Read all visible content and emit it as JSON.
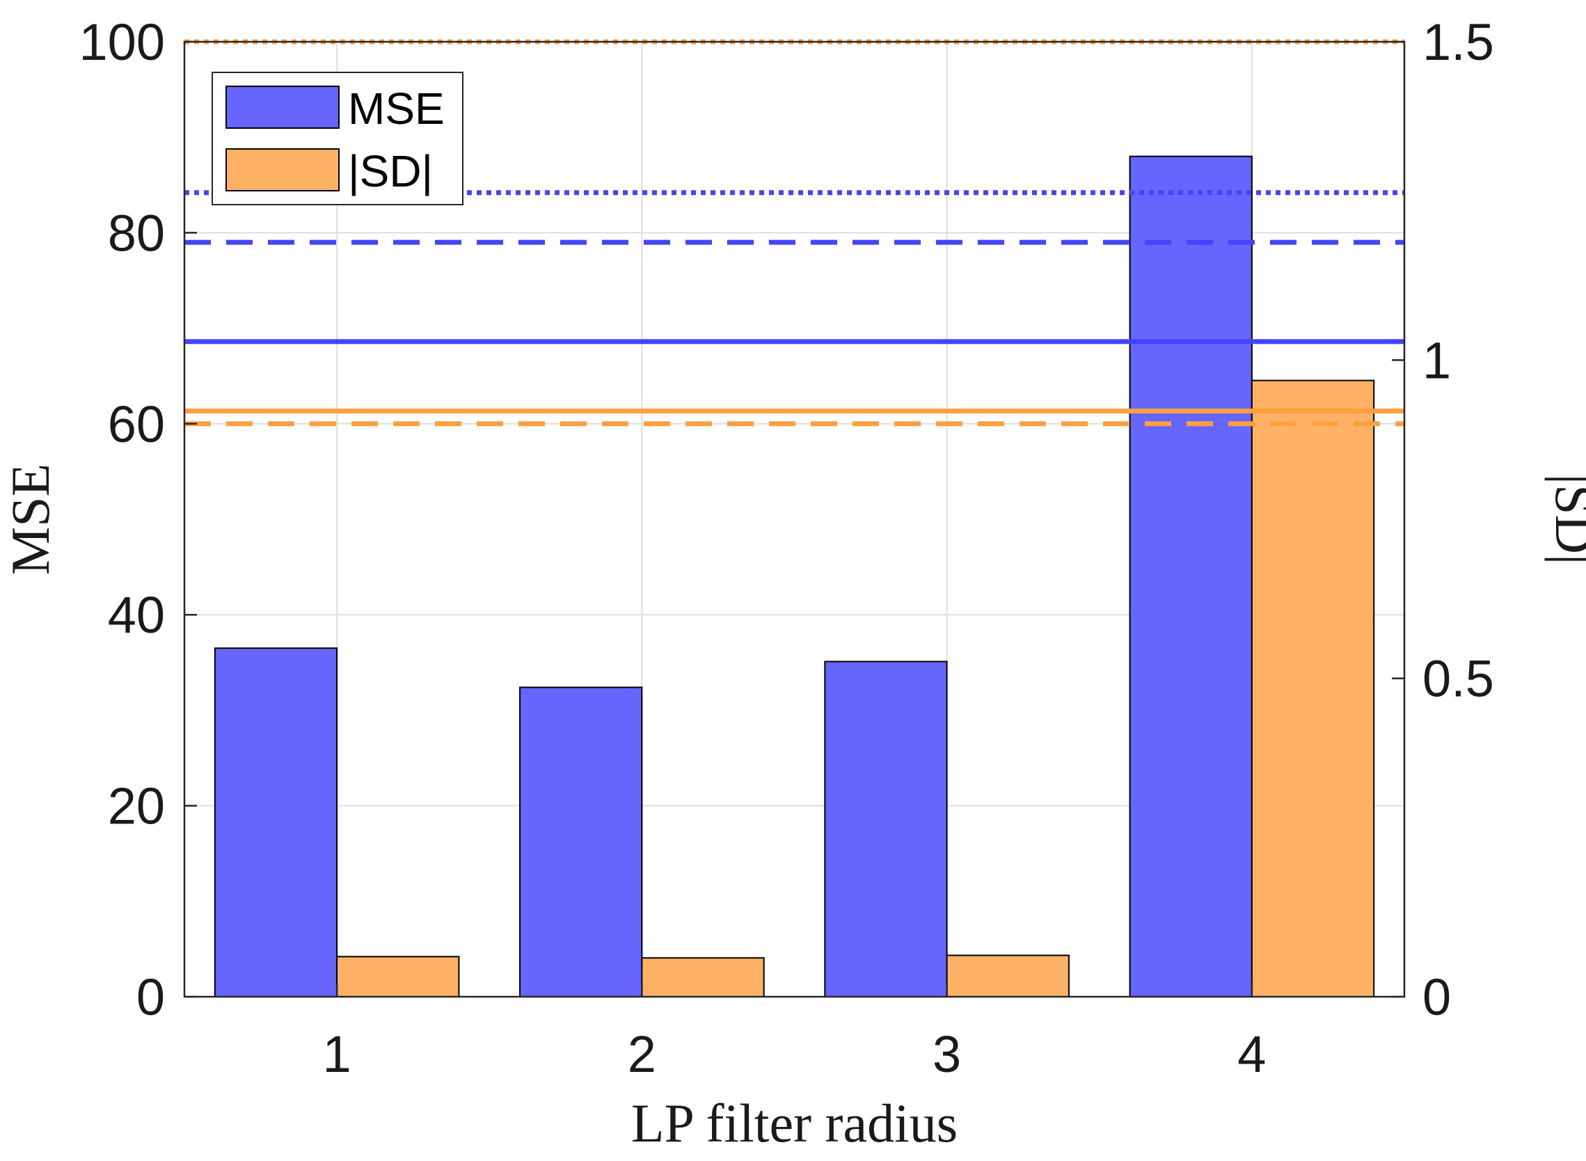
{
  "chart_data": {
    "type": "bar",
    "categories": [
      "1",
      "2",
      "3",
      "4"
    ],
    "xlabel": "LP filter radius",
    "ylabel_left": "MSE",
    "ylabel_right": "|SD|",
    "ylim_left": [
      0,
      100
    ],
    "ylim_right": [
      0,
      1.5
    ],
    "yticks_left": [
      "0",
      "20",
      "40",
      "60",
      "80",
      "100"
    ],
    "yticks_right": [
      "0",
      "0.5",
      "1",
      "1.5"
    ],
    "grid": true,
    "legend_position": "top-left",
    "series": [
      {
        "name": "MSE",
        "axis": "left",
        "color": "#6666ff",
        "values": [
          36.5,
          32.4,
          35.1,
          88.0
        ]
      },
      {
        "name": "|SD|",
        "axis": "right",
        "color": "#ffb266",
        "values": [
          0.063,
          0.061,
          0.065,
          0.968
        ]
      }
    ],
    "reference_lines": [
      {
        "series": "MSE",
        "axis": "left",
        "style": "dotted",
        "color": "#4444ff",
        "value": 84.2
      },
      {
        "series": "MSE",
        "axis": "left",
        "style": "dashed",
        "color": "#4444ff",
        "value": 79.0
      },
      {
        "series": "MSE",
        "axis": "left",
        "style": "solid",
        "color": "#4444ff",
        "value": 68.6
      },
      {
        "series": "|SD|",
        "axis": "right",
        "style": "dotted",
        "color": "#ffa040",
        "value": 1.5
      },
      {
        "series": "|SD|",
        "axis": "right",
        "style": "solid",
        "color": "#ffa040",
        "value": 0.92
      },
      {
        "series": "|SD|",
        "axis": "right",
        "style": "dashed",
        "color": "#ffa040",
        "value": 0.9
      }
    ]
  }
}
